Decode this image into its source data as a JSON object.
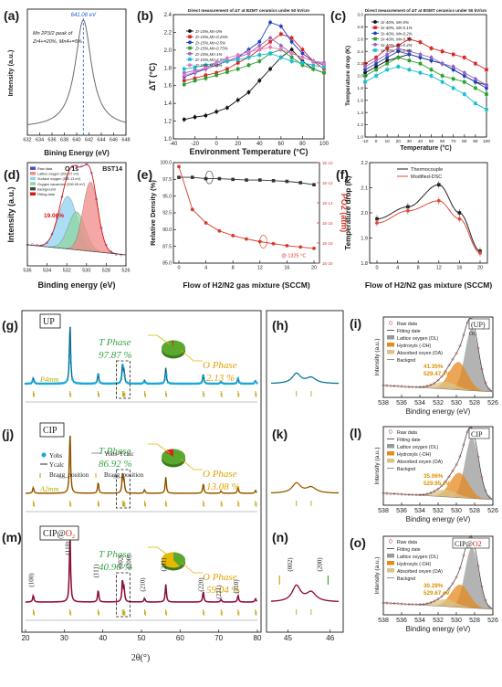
{
  "figure": {
    "panel_letters": [
      "(a)",
      "(b)",
      "(c)",
      "(d)",
      "(e)",
      "(f)",
      "(g)",
      "(h)",
      "(i)",
      "(j)",
      "(k)",
      "(l)",
      "(m)",
      "(n)",
      "(o)"
    ],
    "colors": {
      "black": "#1a1a1a",
      "xrd_up": "#19a8d8",
      "xrd_cip": "#d4830a",
      "xrd_cipo2": "#c01050",
      "xrd_fit": "#202020",
      "bragg_t": "#a0a000",
      "bragg_o": "#e3a000",
      "pie_green": "#5aa82e",
      "pie_red": "#cc2a1a",
      "pie_yellow": "#e8b800",
      "t_phase_text": "#3aa34a",
      "o_phase_text": "#e3a000",
      "xps_raw": "#c06060",
      "xps_lattice": "#999999",
      "xps_hydroxyl": "#e68a1e",
      "xps_absorbed": "#d9c38a",
      "o2_red": "#d81b1b"
    }
  },
  "chart_data": [
    {
      "id": "a",
      "type": "line",
      "title_lines": [
        "Mn 2P3/2 peak of",
        "Zr4+=20%, Mn4+=5%"
      ],
      "peak_label": "641.08 eV",
      "xlabel": "Bining Energy (eV)",
      "ylabel": "Intensity (a.u.)",
      "xlim": [
        632,
        648
      ],
      "xticks": [
        "632",
        "634",
        "636",
        "638",
        "640",
        "642",
        "644",
        "646",
        "648"
      ],
      "peak_center": 641.08,
      "peak_width": 1.6
    },
    {
      "id": "b",
      "type": "line",
      "title": "Direct measurement of ΔT at BZMT ceramics under 50 kV/cm",
      "xlabel": "Environment Temperature (°C)",
      "ylabel": "ΔT (°C)",
      "xlim": [
        -40,
        100
      ],
      "ylim": [
        0.8,
        2.4
      ],
      "xticks": [
        "-40",
        "-20",
        "0",
        "20",
        "40",
        "60",
        "80",
        "100"
      ],
      "yticks": [
        "1.0",
        "1.2",
        "1.4",
        "1.6",
        "1.8",
        "2.0",
        "2.2",
        "2.4"
      ],
      "x": [
        -30,
        -20,
        -10,
        0,
        10,
        20,
        30,
        40,
        50,
        60,
        70,
        80,
        90,
        100
      ],
      "series": [
        {
          "name": "Zr-15%,Mn-0%",
          "color": "#111111",
          "values": [
            1.05,
            1.08,
            1.1,
            1.15,
            1.2,
            1.3,
            1.4,
            1.55,
            1.7,
            1.85,
            1.95,
            1.8,
            1.7,
            1.65
          ]
        },
        {
          "name": "Zr-15%,Mn-0.25%",
          "color": "#d62728",
          "values": [
            1.55,
            1.58,
            1.62,
            1.65,
            1.7,
            1.78,
            1.85,
            1.95,
            2.05,
            2.15,
            2.1,
            1.95,
            1.8,
            1.7
          ]
        },
        {
          "name": "Zr-15%,Mn-0.5%",
          "color": "#1f3fbf",
          "values": [
            1.6,
            1.65,
            1.7,
            1.75,
            1.8,
            1.85,
            1.95,
            2.05,
            2.3,
            2.25,
            2.05,
            1.9,
            1.8,
            1.75
          ]
        },
        {
          "name": "Zr-15%,Mn-0.75%",
          "color": "#2ca02c",
          "values": [
            1.5,
            1.55,
            1.58,
            1.62,
            1.66,
            1.7,
            1.75,
            1.8,
            1.9,
            1.95,
            1.85,
            1.75,
            1.7,
            1.65
          ]
        },
        {
          "name": "Zr-15%,Mn-1%",
          "color": "#9467bd",
          "values": [
            1.65,
            1.68,
            1.7,
            1.75,
            1.8,
            1.85,
            1.9,
            2.0,
            2.1,
            2.0,
            1.9,
            1.85,
            1.8,
            1.78
          ]
        },
        {
          "name": "Zr-15%,Mn-2.5%",
          "color": "#17becf",
          "values": [
            1.7,
            1.72,
            1.75,
            1.78,
            1.8,
            1.82,
            1.85,
            1.88,
            1.9,
            1.85,
            1.8,
            1.78,
            1.75,
            1.72
          ]
        },
        {
          "name": "Zr-15%,Mn-5%",
          "color": "#e377c2",
          "values": [
            1.62,
            1.66,
            1.72,
            1.78,
            1.84,
            1.88,
            1.92,
            1.95,
            1.98,
            1.95,
            1.9,
            1.85,
            1.8,
            1.76
          ]
        }
      ]
    },
    {
      "id": "c",
      "type": "line",
      "title": "Direct measurement of ΔT at BSMT ceramics under 50 kV/cm",
      "xlabel": "Temperature (°C)",
      "ylabel": "Temperature drop (K)",
      "xlim": [
        -10,
        100
      ],
      "ylim": [
        1.0,
        3.0
      ],
      "xticks": [
        "-10",
        "0",
        "10",
        "20",
        "30",
        "40",
        "50",
        "60",
        "70",
        "80",
        "90",
        "100"
      ],
      "yticks": [
        "1.0",
        "1.2",
        "1.4",
        "1.6",
        "1.8",
        "2.0",
        "2.2",
        "2.4",
        "2.6",
        "2.8",
        "3.0"
      ],
      "x": [
        -10,
        0,
        10,
        20,
        30,
        40,
        50,
        60,
        70,
        80,
        90,
        100
      ],
      "series": [
        {
          "name": "Sr-40%, Mn-0%",
          "color": "#111111",
          "values": [
            2.05,
            2.15,
            2.25,
            2.3,
            2.35,
            2.3,
            2.25,
            2.2,
            2.1,
            2.0,
            1.9,
            1.85
          ]
        },
        {
          "name": "Sr-40%, Mn-0.1%",
          "color": "#d62728",
          "values": [
            2.2,
            2.3,
            2.45,
            2.5,
            2.6,
            2.55,
            2.45,
            2.4,
            2.35,
            2.3,
            2.2,
            2.1
          ]
        },
        {
          "name": "Sr-40%, Mn-0.2%",
          "color": "#1f3fbf",
          "values": [
            2.1,
            2.2,
            2.3,
            2.4,
            2.35,
            2.3,
            2.25,
            2.2,
            2.1,
            2.0,
            1.9,
            1.8
          ]
        },
        {
          "name": "Sr-40%, Mn-0.3%",
          "color": "#2ca02c",
          "values": [
            2.0,
            2.1,
            2.2,
            2.3,
            2.25,
            2.2,
            2.1,
            2.0,
            1.95,
            1.9,
            1.8,
            1.7
          ]
        },
        {
          "name": "Sr-40%, Mn-0.4%",
          "color": "#9467bd",
          "values": [
            2.15,
            2.25,
            2.35,
            2.45,
            2.4,
            2.35,
            2.3,
            2.2,
            2.15,
            2.05,
            1.95,
            1.85
          ]
        },
        {
          "name": "Sr-40%, Mn-0.5%",
          "color": "#17becf",
          "values": [
            1.9,
            2.0,
            2.1,
            2.15,
            2.1,
            2.05,
            2.0,
            1.9,
            1.8,
            1.7,
            1.55,
            1.45
          ]
        }
      ]
    },
    {
      "id": "d",
      "type": "area",
      "label_top": "O 1s",
      "sample": "BST14",
      "legend": [
        "Raw data",
        "Lattice oxygen (531.27 eV)",
        "Surface oxygen (532.13 eV)",
        "Oxygen vacancies (530.95 eV)",
        "background",
        "Fitting data"
      ],
      "annotation": "19.06%",
      "xlabel": "Binding energy (eV)",
      "ylabel": "Intensity (a.u.)",
      "xlim": [
        536,
        526
      ],
      "xticks": [
        "536",
        "534",
        "532",
        "530",
        "528",
        "526"
      ],
      "peaks": [
        {
          "name": "Surface oxygen",
          "center": 531.9,
          "width": 0.95,
          "amp": 0.72,
          "color": "#8fd3f0"
        },
        {
          "name": "Oxygen vacancies",
          "center": 531.0,
          "width": 0.85,
          "amp": 0.52,
          "color": "#8fd6a0"
        },
        {
          "name": "Lattice oxygen",
          "center": 529.6,
          "width": 0.75,
          "amp": 0.95,
          "color": "#f08a86"
        }
      ]
    },
    {
      "id": "e",
      "type": "line",
      "xlabel": "Flow of H2/N2 gas mixture (SCCM)",
      "ylabel": "Relative Density (%)",
      "ylabel2": "PO2 (atm)",
      "annotation": "@ 1325 °C",
      "x": [
        0,
        2,
        4,
        6,
        8,
        10,
        12,
        14,
        16,
        18,
        20
      ],
      "xticks": [
        "0",
        "4",
        "8",
        "12",
        "16",
        "20"
      ],
      "ylim": [
        85.0,
        100.0
      ],
      "yticks": [
        "85.0",
        "87.5",
        "90.0",
        "92.5",
        "95.0",
        "97.5",
        "100.0"
      ],
      "y2ticks": [
        "1E-20",
        "1E-18",
        "1E-16",
        "1E-14",
        "1E-12",
        "1E-10"
      ],
      "series": [
        {
          "name": "Relative Density",
          "color": "#333333",
          "values": [
            97.8,
            97.8,
            97.6,
            97.6,
            97.5,
            97.4,
            97.4,
            97.3,
            97.2,
            97.0,
            96.7
          ]
        },
        {
          "name": "PO2",
          "color": "#d63a2a",
          "values": [
            99.4,
            93.0,
            91.0,
            89.8,
            89.1,
            88.6,
            88.2,
            87.9,
            87.6,
            87.4,
            87.2
          ]
        }
      ]
    },
    {
      "id": "f",
      "type": "line",
      "xlabel": "Flow of H2/N2 gas mixture (SCCM)",
      "ylabel": "Temperature drop (K)",
      "x": [
        0,
        6,
        12,
        16,
        20
      ],
      "xticks": [
        "0",
        "4",
        "8",
        "12",
        "16",
        "20"
      ],
      "ylim": [
        1.7,
        2.2
      ],
      "yticks": [
        "1.8",
        "1.9",
        "2.0",
        "2.1",
        "2.2"
      ],
      "series": [
        {
          "name": "Thermocouple",
          "color": "#222222",
          "values": [
            1.92,
            1.98,
            2.09,
            1.95,
            1.76
          ]
        },
        {
          "name": "Modified-DSC",
          "color": "#e04a3a",
          "values": [
            1.9,
            1.96,
            2.01,
            1.92,
            1.75
          ]
        }
      ]
    },
    {
      "id": "xrd",
      "type": "line",
      "xlabel": "2θ(°)",
      "xlim": [
        20,
        80
      ],
      "xticks": [
        "20",
        "30",
        "40",
        "50",
        "60",
        "70",
        "80"
      ],
      "inset_xticks": [
        "45",
        "46"
      ],
      "legend": [
        "Yobs",
        "Ycalc",
        "Yobs-Ycalc",
        "Bragg_position",
        "Bragg_position"
      ],
      "peaks_2theta": [
        22.0,
        31.5,
        38.8,
        45.1,
        45.5,
        50.8,
        56.3,
        66.0,
        70.6,
        75.0,
        79.5
      ],
      "peaks_rel": [
        0.1,
        1.0,
        0.18,
        0.32,
        0.18,
        0.06,
        0.26,
        0.16,
        0.04,
        0.1,
        0.05
      ],
      "hkl_labels": [
        "(100)",
        "(110)",
        "(111)",
        "(002)",
        "(200)",
        "(210)",
        "(211)",
        "(220)",
        "(221)",
        "(310)"
      ],
      "inset_hkl": [
        "(002)",
        "(200)"
      ],
      "panels": [
        {
          "id": "g",
          "sample": "UP",
          "t_label": "T Phase",
          "t_value": "97.87 %",
          "o_label": "O Phase",
          "o_value": "2.13 %",
          "t_fraction": 0.9787,
          "scale_tag": "P4mm"
        },
        {
          "id": "j",
          "sample": "CIP",
          "t_label": "T Phase",
          "t_value": "86.92 %",
          "o_label": "O Phase",
          "o_value": "13.08 %",
          "t_fraction": 0.8692,
          "scale_tag": "A2mm"
        },
        {
          "id": "m",
          "sample": "CIP@",
          "sample_sub": "O",
          "sample_subscript": "2",
          "t_label": "T Phase",
          "t_value": "40.96 %",
          "o_label": "O Phase",
          "o_value": "59.04 %",
          "t_fraction": 0.4096
        }
      ]
    },
    {
      "id": "xps",
      "type": "area",
      "xlabel": "Binding energy (eV)",
      "ylabel": "Intensity (a.u.)",
      "xlim": [
        538,
        526
      ],
      "xticks": [
        "538",
        "536",
        "534",
        "532",
        "530",
        "528",
        "526"
      ],
      "panels": [
        {
          "id": "i",
          "sample": "(UP)",
          "ol_tag": "OL",
          "legend": [
            "Raw data",
            "Fitting date",
            "Lattice oxygen (OL)",
            "Hydroxyls (-OH)",
            "Absorbed oxyen (OA)",
            "Backgnd"
          ],
          "pct": "41.35%",
          "energy": "529.47 eV"
        },
        {
          "id": "l",
          "sample": "CIP",
          "legend": [
            "Raw data",
            "Fitting date",
            "Lattice oxygen (OL)",
            "Hydroxyls (-OH)",
            "Absorbed oxyen (OA)",
            "Backgnd"
          ],
          "pct": "35.06%",
          "energy": "529.95 eV"
        },
        {
          "id": "o",
          "sample": "CIP@O2",
          "legend": [
            "Raw data",
            "Fitting date",
            "Lattice oxygen (OL)",
            "Hydroxyls (-OH)",
            "Absorbed oxyen (OA)",
            "Backgnd"
          ],
          "pct": "30.28%",
          "energy": "529.67 eV"
        }
      ]
    }
  ]
}
